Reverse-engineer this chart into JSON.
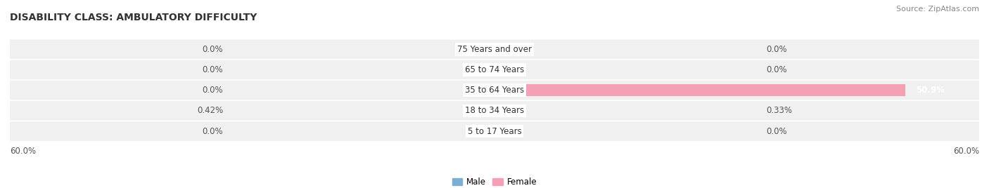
{
  "title": "DISABILITY CLASS: AMBULATORY DIFFICULTY",
  "source": "Source: ZipAtlas.com",
  "categories": [
    "5 to 17 Years",
    "18 to 34 Years",
    "35 to 64 Years",
    "65 to 74 Years",
    "75 Years and over"
  ],
  "male_values": [
    0.0,
    0.42,
    0.0,
    0.0,
    0.0
  ],
  "female_values": [
    0.0,
    0.33,
    50.9,
    0.0,
    0.0
  ],
  "male_color": "#7bafd4",
  "female_color": "#f4a0b5",
  "row_bg_color": "#f0f0f0",
  "max_value": 60.0,
  "label_left_male": [
    "0.0%",
    "0.42%",
    "0.0%",
    "0.0%",
    "0.0%"
  ],
  "label_right_female": [
    "0.0%",
    "0.33%",
    "50.9%",
    "0.0%",
    "0.0%"
  ],
  "axis_label_left": "60.0%",
  "axis_label_right": "60.0%",
  "title_fontsize": 10,
  "label_fontsize": 8.5,
  "category_fontsize": 8.5,
  "source_fontsize": 8,
  "small_bar": 1.5
}
